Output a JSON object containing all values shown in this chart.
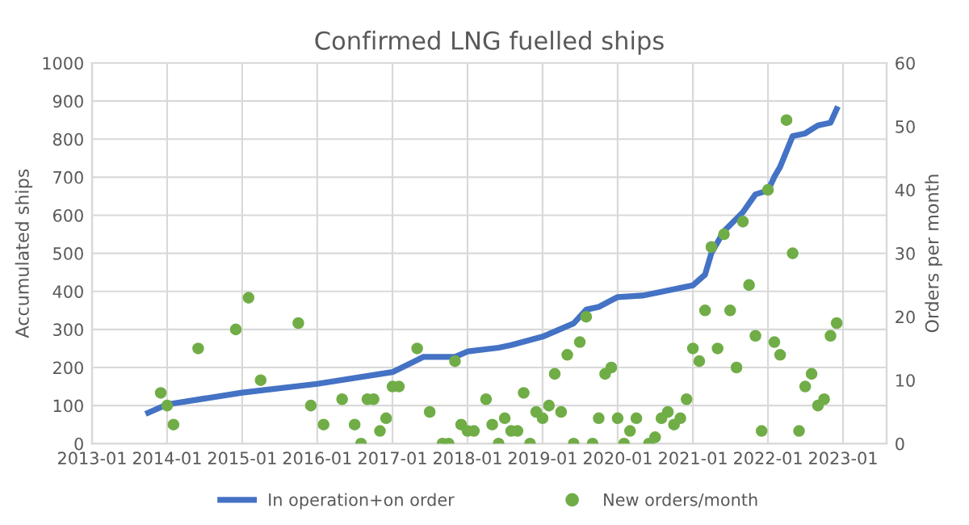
{
  "chart_data": {
    "type": "line",
    "title": "Confirmed LNG fuelled ships",
    "ylabel": "Accumulated ships",
    "y2label": "Orders per month",
    "xlim": [
      "2013-01",
      "2023-08"
    ],
    "xticks": [
      "2013-01",
      "2014-01",
      "2015-01",
      "2016-01",
      "2017-01",
      "2018-01",
      "2019-01",
      "2020-01",
      "2021-01",
      "2022-01",
      "2023-01"
    ],
    "ylim": [
      0,
      1000
    ],
    "yticks": [
      0,
      100,
      200,
      300,
      400,
      500,
      600,
      700,
      800,
      900,
      1000
    ],
    "y2lim": [
      0,
      60
    ],
    "y2ticks": [
      0,
      10,
      20,
      30,
      40,
      50,
      60
    ],
    "grid": true,
    "legend": "bottom",
    "series": [
      {
        "name": "In operation+on order",
        "color": "#4472c4",
        "marker": "none",
        "x": [
          "2013-10",
          "2014-01",
          "2015-01",
          "2016-01",
          "2017-01",
          "2017-06",
          "2017-11",
          "2018-01",
          "2018-06",
          "2018-08",
          "2019-01",
          "2019-06",
          "2019-08",
          "2019-10",
          "2020-01",
          "2020-05",
          "2020-08",
          "2021-01",
          "2021-03",
          "2021-04",
          "2021-06",
          "2021-09",
          "2021-11",
          "2022-01",
          "2022-02",
          "2022-03",
          "2022-05",
          "2022-07",
          "2022-09",
          "2022-11",
          "2022-12"
        ],
        "values": [
          81,
          103,
          134,
          157,
          188,
          228,
          228,
          242,
          252,
          259,
          281,
          316,
          352,
          359,
          385,
          389,
          399,
          416,
          444,
          501,
          558,
          608,
          655,
          665,
          701,
          727,
          808,
          815,
          836,
          843,
          879
        ]
      },
      {
        "name": "New orders/month",
        "type": "scatter",
        "axis": "y2",
        "color": "#70ad47",
        "marker": "circle",
        "x": [
          "2013-12",
          "2014-01",
          "2014-02",
          "2014-06",
          "2014-12",
          "2015-02",
          "2015-04",
          "2015-10",
          "2015-12",
          "2016-02",
          "2016-05",
          "2016-07",
          "2016-08",
          "2016-09",
          "2016-10",
          "2016-11",
          "2016-12",
          "2017-01",
          "2017-02",
          "2017-05",
          "2017-07",
          "2017-09",
          "2017-10",
          "2017-11",
          "2017-12",
          "2018-01",
          "2018-02",
          "2018-04",
          "2018-05",
          "2018-06",
          "2018-07",
          "2018-08",
          "2018-09",
          "2018-10",
          "2018-11",
          "2018-12",
          "2019-01",
          "2019-02",
          "2019-03",
          "2019-04",
          "2019-05",
          "2019-06",
          "2019-07",
          "2019-08",
          "2019-09",
          "2019-10",
          "2019-11",
          "2019-12",
          "2020-01",
          "2020-02",
          "2020-03",
          "2020-04",
          "2020-06",
          "2020-07",
          "2020-08",
          "2020-09",
          "2020-10",
          "2020-11",
          "2020-12",
          "2021-01",
          "2021-02",
          "2021-03",
          "2021-04",
          "2021-05",
          "2021-06",
          "2021-07",
          "2021-08",
          "2021-09",
          "2021-10",
          "2021-11",
          "2021-12",
          "2022-01",
          "2022-02",
          "2022-03",
          "2022-04",
          "2022-05",
          "2022-06",
          "2022-07",
          "2022-08",
          "2022-09",
          "2022-10",
          "2022-11",
          "2022-12"
        ],
        "values": [
          8,
          6,
          3,
          15,
          18,
          23,
          10,
          19,
          6,
          3,
          7,
          3,
          0,
          7,
          7,
          2,
          4,
          9,
          9,
          15,
          5,
          0,
          0,
          13,
          3,
          2,
          2,
          7,
          3,
          0,
          4,
          2,
          2,
          8,
          0,
          5,
          4,
          6,
          11,
          5,
          14,
          0,
          16,
          20,
          0,
          4,
          11,
          12,
          4,
          0,
          2,
          4,
          0,
          1,
          4,
          5,
          3,
          4,
          7,
          15,
          13,
          21,
          31,
          15,
          33,
          21,
          12,
          35,
          25,
          17,
          2,
          40,
          16,
          14,
          51,
          30,
          2,
          9,
          11,
          6,
          7,
          17,
          19
        ]
      }
    ]
  }
}
